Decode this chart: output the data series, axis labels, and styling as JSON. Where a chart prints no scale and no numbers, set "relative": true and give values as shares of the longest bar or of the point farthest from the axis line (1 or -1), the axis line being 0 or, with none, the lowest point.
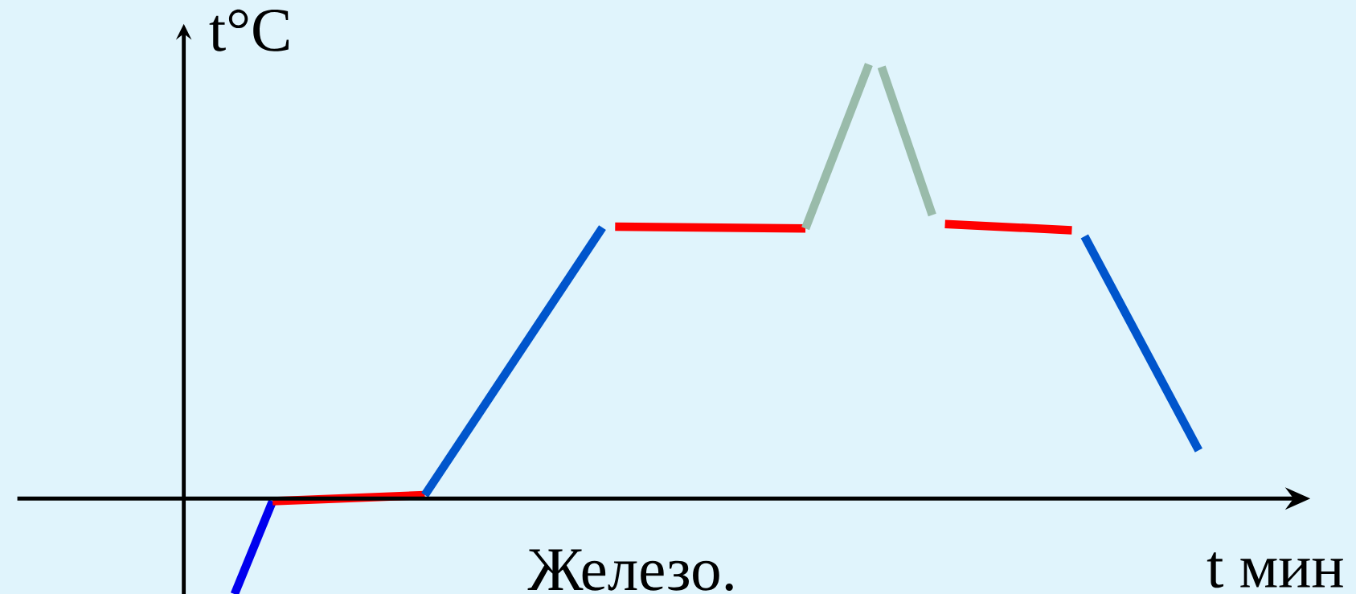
{
  "chart_data": {
    "type": "line",
    "relative": true,
    "xlabel": "t мин",
    "ylabel": "t°C",
    "annotations": [
      "Железо."
    ],
    "line_style": "solid",
    "categories": [
      null,
      null,
      null,
      null,
      null,
      null,
      null,
      null,
      null,
      null,
      null,
      null,
      null,
      null,
      null,
      null,
      null,
      null,
      null,
      null,
      null,
      null,
      null,
      null,
      null,
      null,
      null,
      null,
      null,
      null,
      null,
      null,
      null,
      null,
      null,
      null,
      null,
      null,
      null,
      null,
      null,
      null,
      null,
      null,
      null,
      null,
      null,
      null,
      null,
      null,
      null,
      null,
      null,
      null,
      null,
      null,
      null,
      null,
      null,
      null,
      null,
      null,
      null,
      null,
      null,
      null,
      null,
      null,
      null,
      null,
      null,
      null,
      null,
      null,
      null,
      null,
      null,
      null,
      null,
      null,
      null
    ],
    "series": [
      {
        "color": "#0000ee",
        "values": [
          null,
          null,
          null,
          null,
          -0.22,
          null,
          null,
          -0.006,
          null,
          null,
          null,
          null,
          null,
          null,
          null,
          null,
          null,
          null,
          null,
          null,
          null,
          null,
          null,
          null,
          null,
          null,
          null,
          null,
          null,
          null,
          null,
          null,
          null,
          null,
          null,
          null,
          null,
          null,
          null,
          null,
          null,
          null,
          null,
          null,
          null,
          null,
          null,
          null,
          null,
          null,
          null,
          null,
          null,
          null,
          null,
          null,
          null,
          null,
          null,
          null,
          null,
          null,
          null,
          null,
          null,
          null,
          null,
          null,
          null,
          null,
          null,
          null,
          null,
          null,
          null,
          null,
          null,
          null,
          null,
          null,
          null
        ]
      },
      {
        "color": "#ff0000",
        "values": [
          null,
          null,
          null,
          null,
          null,
          null,
          null,
          -0.006,
          null,
          null,
          null,
          null,
          null,
          null,
          null,
          null,
          null,
          null,
          null,
          0.008,
          null,
          null,
          null,
          null,
          null,
          null,
          null,
          null,
          null,
          null,
          null,
          null,
          null,
          null,
          null,
          null,
          null,
          null,
          null,
          null,
          null,
          null,
          null,
          null,
          null,
          null,
          null,
          null,
          null,
          null,
          null,
          null,
          null,
          null,
          null,
          null,
          null,
          null,
          null,
          null,
          null,
          null,
          null,
          null,
          null,
          null,
          null,
          null,
          null,
          null,
          null,
          null,
          null,
          null,
          null,
          null,
          null,
          null,
          null,
          null,
          null
        ]
      },
      {
        "color": "#0055cc",
        "values": [
          null,
          null,
          null,
          null,
          null,
          null,
          null,
          null,
          null,
          null,
          null,
          null,
          null,
          null,
          null,
          null,
          null,
          null,
          null,
          0.008,
          null,
          null,
          null,
          null,
          null,
          null,
          null,
          null,
          null,
          null,
          null,
          null,
          null,
          0.624,
          null,
          null,
          null,
          null,
          null,
          null,
          null,
          null,
          null,
          null,
          null,
          null,
          null,
          null,
          null,
          null,
          null,
          null,
          null,
          null,
          null,
          null,
          null,
          null,
          null,
          null,
          null,
          null,
          null,
          null,
          null,
          null,
          null,
          null,
          null,
          null,
          null,
          null,
          null,
          null,
          null,
          null,
          null,
          null,
          null,
          null,
          null
        ]
      },
      {
        "color": "#ff0000",
        "values": [
          null,
          null,
          null,
          null,
          null,
          null,
          null,
          null,
          null,
          null,
          null,
          null,
          null,
          null,
          null,
          null,
          null,
          null,
          null,
          null,
          null,
          null,
          null,
          null,
          null,
          null,
          null,
          null,
          null,
          null,
          null,
          null,
          null,
          null,
          0.626,
          null,
          null,
          null,
          null,
          null,
          null,
          null,
          null,
          null,
          null,
          null,
          null,
          null,
          null,
          0.622,
          null,
          null,
          null,
          null,
          null,
          null,
          null,
          null,
          null,
          null,
          null,
          null,
          null,
          null,
          null,
          null,
          null,
          null,
          null,
          null,
          null,
          null,
          null,
          null,
          null,
          null,
          null,
          null,
          null,
          null,
          null
        ]
      },
      {
        "color": "#99bbaa",
        "values": [
          null,
          null,
          null,
          null,
          null,
          null,
          null,
          null,
          null,
          null,
          null,
          null,
          null,
          null,
          null,
          null,
          null,
          null,
          null,
          null,
          null,
          null,
          null,
          null,
          null,
          null,
          null,
          null,
          null,
          null,
          null,
          null,
          null,
          null,
          null,
          null,
          null,
          null,
          null,
          null,
          null,
          null,
          null,
          null,
          null,
          null,
          null,
          null,
          null,
          0.622,
          null,
          null,
          null,
          null,
          1,
          null,
          null,
          null,
          null,
          null,
          null,
          null,
          null,
          null,
          null,
          null,
          null,
          null,
          null,
          null,
          null,
          null,
          null,
          null,
          null,
          null,
          null,
          null,
          null,
          null,
          null
        ]
      },
      {
        "color": "#99bbaa",
        "values": [
          null,
          null,
          null,
          null,
          null,
          null,
          null,
          null,
          null,
          null,
          null,
          null,
          null,
          null,
          null,
          null,
          null,
          null,
          null,
          null,
          null,
          null,
          null,
          null,
          null,
          null,
          null,
          null,
          null,
          null,
          null,
          null,
          null,
          null,
          null,
          null,
          null,
          null,
          null,
          null,
          null,
          null,
          null,
          null,
          null,
          null,
          null,
          null,
          null,
          null,
          null,
          null,
          null,
          null,
          null,
          0.994,
          null,
          null,
          null,
          0.653,
          null,
          null,
          null,
          null,
          null,
          null,
          null,
          null,
          null,
          null,
          null,
          null,
          null,
          null,
          null,
          null,
          null,
          null,
          null,
          null,
          null
        ]
      },
      {
        "color": "#ff0000",
        "values": [
          null,
          null,
          null,
          null,
          null,
          null,
          null,
          null,
          null,
          null,
          null,
          null,
          null,
          null,
          null,
          null,
          null,
          null,
          null,
          null,
          null,
          null,
          null,
          null,
          null,
          null,
          null,
          null,
          null,
          null,
          null,
          null,
          null,
          null,
          null,
          null,
          null,
          null,
          null,
          null,
          null,
          null,
          null,
          null,
          null,
          null,
          null,
          null,
          null,
          null,
          null,
          null,
          null,
          null,
          null,
          null,
          null,
          null,
          null,
          null,
          0.632,
          null,
          null,
          null,
          null,
          null,
          null,
          null,
          null,
          null,
          0.618,
          null,
          null,
          null,
          null,
          null,
          null,
          null,
          null,
          null,
          null
        ]
      },
      {
        "color": "#0055cc",
        "values": [
          null,
          null,
          null,
          null,
          null,
          null,
          null,
          null,
          null,
          null,
          null,
          null,
          null,
          null,
          null,
          null,
          null,
          null,
          null,
          null,
          null,
          null,
          null,
          null,
          null,
          null,
          null,
          null,
          null,
          null,
          null,
          null,
          null,
          null,
          null,
          null,
          null,
          null,
          null,
          null,
          null,
          null,
          null,
          null,
          null,
          null,
          null,
          null,
          null,
          null,
          null,
          null,
          null,
          null,
          null,
          null,
          null,
          null,
          null,
          null,
          null,
          null,
          null,
          null,
          null,
          null,
          null,
          null,
          null,
          null,
          null,
          0.604,
          null,
          null,
          null,
          null,
          null,
          null,
          null,
          null,
          0.111
        ]
      }
    ]
  }
}
